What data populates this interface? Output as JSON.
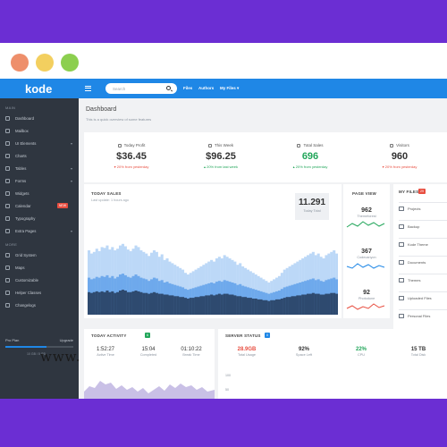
{
  "window": {
    "dots": [
      "#ee8f6b",
      "#f3cf5f",
      "#8ccf4f"
    ]
  },
  "colors": {
    "brand": "#1f87e6",
    "sidebar": "#2f3640",
    "frame": "#6b2ed3",
    "positive": "#22a65a",
    "negative": "#e84e40"
  },
  "brand": {
    "name": "kode"
  },
  "sidebar": {
    "main_title": "MAIN",
    "items": [
      {
        "label": "Dashboard",
        "icon": "dashboard-icon"
      },
      {
        "label": "Mailbox",
        "icon": "mail-icon"
      },
      {
        "label": "UI Elements",
        "icon": "layers-icon"
      },
      {
        "label": "Charts",
        "icon": "chart-icon"
      },
      {
        "label": "Tables",
        "icon": "table-icon"
      },
      {
        "label": "Forms",
        "icon": "form-icon"
      },
      {
        "label": "Widgets",
        "icon": "widget-icon"
      },
      {
        "label": "Calendar",
        "icon": "calendar-icon",
        "badge": "NEW"
      },
      {
        "label": "Typography",
        "icon": "typography-icon"
      },
      {
        "label": "Extra Pages",
        "icon": "pages-icon"
      }
    ],
    "more_title": "MORE",
    "more_items": [
      {
        "label": "Grid System",
        "icon": "grid-icon"
      },
      {
        "label": "Maps",
        "icon": "map-icon"
      },
      {
        "label": "Customizable",
        "icon": "settings-icon"
      },
      {
        "label": "Helper Classes",
        "icon": "helper-icon"
      },
      {
        "label": "Changelogs",
        "icon": "changelog-icon"
      }
    ],
    "plan": {
      "label": "Pro Plan",
      "upgrade": "Upgrade",
      "note": "10 GB / 5 GB",
      "progress": 0.6
    }
  },
  "watermark": "www.",
  "topbar": {
    "search_placeholder": "Search",
    "links": [
      "Files",
      "Authors",
      "My Files ▾"
    ]
  },
  "page": {
    "title": "Dashboard",
    "subtitle": "This is a quick overview of some features"
  },
  "stats": [
    {
      "label": "Today Profit",
      "icon": "briefcase-icon",
      "value": "$36.45",
      "change": "▾ 20% from yesterday",
      "trend": "down"
    },
    {
      "label": "This Week",
      "icon": "calendar-icon",
      "value": "$96.25",
      "change": "▴ 20% from last week",
      "trend": "up"
    },
    {
      "label": "Total Sales",
      "icon": "cart-icon",
      "value": "696",
      "change": "▴ 20% from yesterday",
      "trend": "up"
    },
    {
      "label": "Visitors",
      "icon": "visitors-icon",
      "value": "960",
      "change": "▾ 20% from yesterday",
      "trend": "down"
    }
  ],
  "sales": {
    "title": "TODAY SALES",
    "subtitle": "Last update: 1 hours ago",
    "total_value": "11.291",
    "total_label": "Today Total"
  },
  "chart_data": {
    "type": "bar",
    "title": "TODAY SALES",
    "xlabel": "",
    "ylabel": "",
    "ylim": [
      0,
      100
    ],
    "grid": false,
    "series": [
      {
        "color": "#bcd8f7",
        "values": [
          80,
          76,
          78,
          82,
          79,
          84,
          83,
          86,
          81,
          84,
          80,
          82,
          86,
          88,
          85,
          81,
          79,
          82,
          86,
          84,
          80,
          78,
          76,
          73,
          77,
          80,
          78,
          72,
          75,
          68,
          70,
          66,
          64,
          62,
          60,
          58,
          56,
          52,
          50,
          52,
          54,
          56,
          58,
          60,
          62,
          64,
          66,
          68,
          66,
          70,
          72,
          70,
          74,
          72,
          70,
          68,
          66,
          62,
          64,
          60,
          58,
          56,
          54,
          52,
          50,
          48,
          46,
          44,
          42,
          40,
          42,
          44,
          46,
          48,
          52,
          56,
          58,
          60,
          62,
          64,
          66,
          68,
          70,
          72,
          74,
          76,
          78,
          74,
          76,
          72,
          70,
          74,
          76,
          78,
          80,
          76
        ]
      },
      {
        "color": "#6ea9ec",
        "values": [
          46,
          44,
          45,
          47,
          46,
          48,
          47,
          49,
          46,
          48,
          45,
          47,
          50,
          51,
          49,
          47,
          46,
          48,
          50,
          48,
          46,
          45,
          44,
          42,
          44,
          46,
          45,
          42,
          43,
          40,
          41,
          39,
          38,
          37,
          36,
          35,
          34,
          32,
          31,
          32,
          33,
          34,
          35,
          36,
          37,
          38,
          39,
          40,
          39,
          41,
          42,
          41,
          43,
          42,
          41,
          40,
          39,
          37,
          38,
          36,
          35,
          34,
          33,
          32,
          31,
          30,
          29,
          28,
          27,
          26,
          27,
          28,
          29,
          30,
          32,
          34,
          35,
          36,
          37,
          38,
          39,
          40,
          41,
          42,
          43,
          44,
          45,
          43,
          44,
          42,
          41,
          43,
          44,
          45,
          46,
          44
        ]
      },
      {
        "color": "#2e4a6f",
        "values": [
          28,
          27,
          28,
          29,
          28,
          29,
          28,
          30,
          28,
          29,
          27,
          28,
          30,
          31,
          30,
          28,
          28,
          29,
          30,
          29,
          28,
          27,
          27,
          26,
          27,
          28,
          27,
          26,
          26,
          25,
          25,
          24,
          24,
          23,
          23,
          22,
          22,
          21,
          20,
          21,
          21,
          22,
          22,
          23,
          23,
          24,
          24,
          25,
          24,
          25,
          26,
          25,
          26,
          26,
          25,
          25,
          24,
          23,
          23,
          22,
          22,
          21,
          21,
          20,
          20,
          19,
          19,
          18,
          18,
          17,
          18,
          18,
          19,
          19,
          20,
          21,
          22,
          22,
          23,
          23,
          24,
          24,
          25,
          25,
          26,
          26,
          27,
          26,
          26,
          25,
          25,
          26,
          26,
          27,
          27,
          26
        ]
      }
    ]
  },
  "pageview": {
    "title": "PAGE VIEW",
    "items": [
      {
        "value": "962",
        "label": "Themeforest",
        "color": "#22a65a"
      },
      {
        "value": "367",
        "label": "Codecanyon",
        "color": "#1f87e6"
      },
      {
        "value": "92",
        "label": "Photodune",
        "color": "#e84e40"
      }
    ]
  },
  "myfiles": {
    "title": "MY FILES",
    "badge": "29",
    "items": [
      "Projects",
      "Backup",
      "Kode Theme",
      "Documents",
      "Themes",
      "Uploaded Files",
      "Personal Files"
    ]
  },
  "activity": {
    "title": "TODAY ACTIVITY",
    "badge": "6",
    "stats": [
      {
        "value": "1:52:27",
        "label": "Active Time"
      },
      {
        "value": "15:04",
        "label": "Completed"
      },
      {
        "value": "01:10:22",
        "label": "Break Time"
      }
    ]
  },
  "server": {
    "title": "SERVER STATUS",
    "badge": "0",
    "stats": [
      {
        "value": "28.9GB",
        "label": "Total Usage",
        "color": "#e84e40"
      },
      {
        "value": "92%",
        "label": "Space Left",
        "color": "#333333"
      },
      {
        "value": "22%",
        "label": "CPU",
        "color": "#22a65a"
      },
      {
        "value": "15 TB",
        "label": "Total Disk",
        "color": "#333333"
      }
    ],
    "axis": [
      "100",
      "50"
    ]
  }
}
